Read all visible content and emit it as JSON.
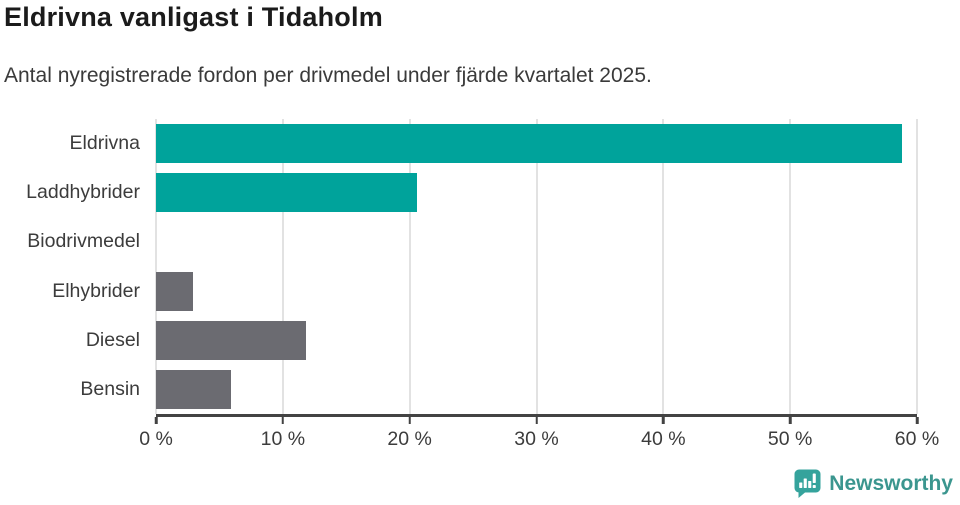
{
  "header": {
    "title": "Eldrivna vanligast i Tidaholm",
    "subtitle": "Antal nyregistrerade fordon per drivmedel under fjärde kvartalet 2025."
  },
  "chart_data": {
    "type": "bar",
    "orientation": "horizontal",
    "title": "Eldrivna vanligast i Tidaholm",
    "subtitle": "Antal nyregistrerade fordon per drivmedel under fjärde kvartalet 2025.",
    "categories": [
      "Eldrivna",
      "Laddhybrider",
      "Biodrivmedel",
      "Elhybrider",
      "Diesel",
      "Bensin"
    ],
    "values": [
      58.8,
      20.6,
      0,
      2.9,
      11.8,
      5.9
    ],
    "unit": "%",
    "xlabel": "",
    "ylabel": "",
    "xlim": [
      0,
      60
    ],
    "x_ticks": [
      "0 %",
      "10 %",
      "20 %",
      "30 %",
      "40 %",
      "50 %",
      "60 %"
    ],
    "x_tick_values": [
      0,
      10,
      20,
      30,
      40,
      50,
      60
    ],
    "grid": "vertical-only",
    "legend": "none",
    "bar_colors": [
      "#00a39b",
      "#00a39b",
      "#6b6b71",
      "#6b6b71",
      "#6b6b71",
      "#6b6b71"
    ],
    "highlight_color": "#00a39b",
    "default_color": "#6b6b71"
  },
  "footer": {
    "brand": "Newsworthy",
    "logo_icon": "newsworthy-speech-bubble-bar-chart-icon",
    "brand_color": "#3b968f",
    "icon_color": "#35a39c"
  },
  "colors": {
    "background": "#ffffff",
    "title_text": "#1b1b1b",
    "subtitle_text": "#3a3a3a",
    "axis_line": "#434343",
    "gridline": "#e2e2e2",
    "tick_text": "#3c3c3c"
  }
}
